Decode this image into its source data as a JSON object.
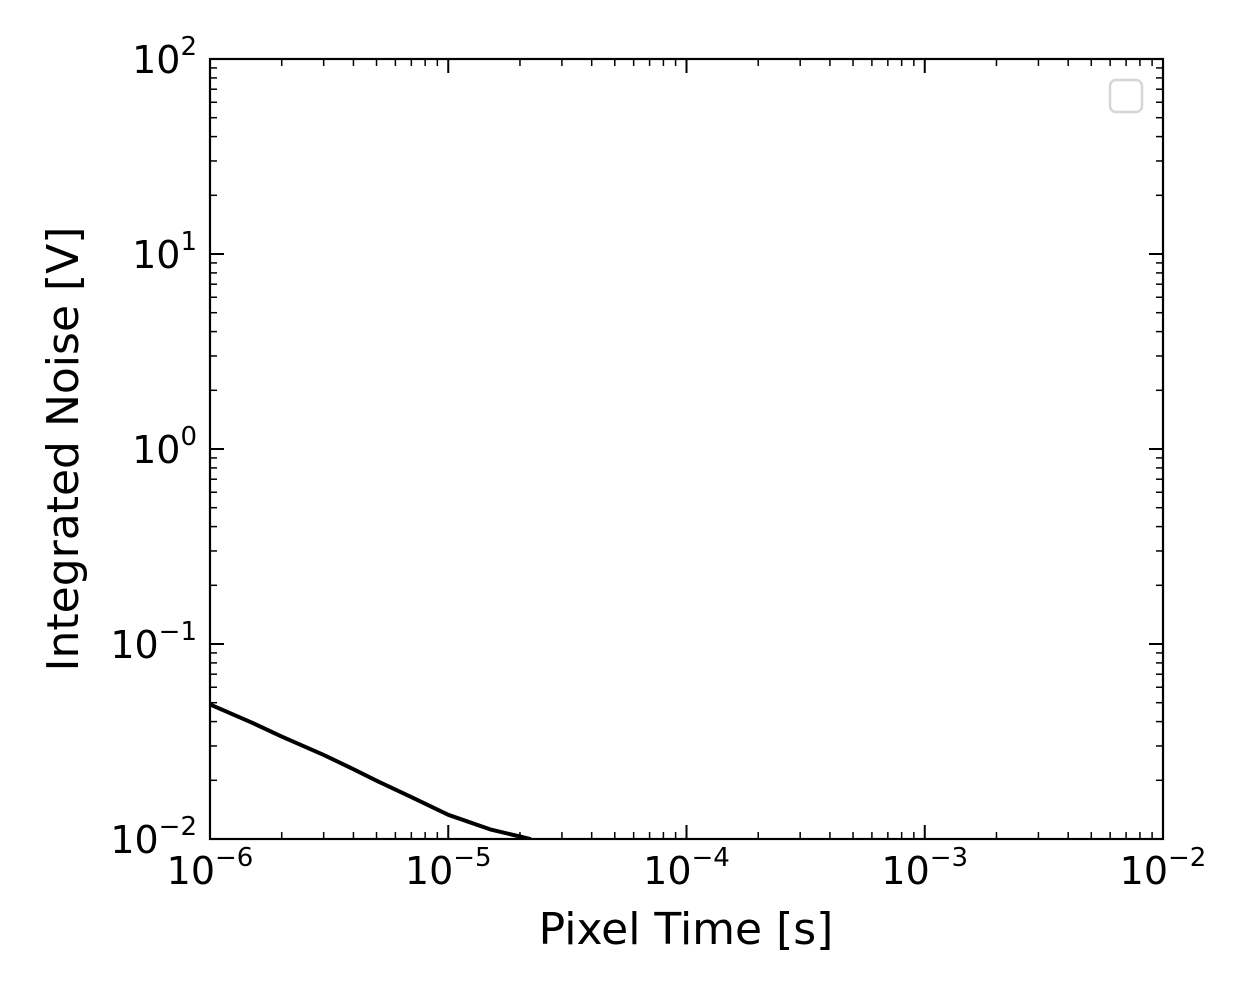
{
  "chart_data": {
    "type": "line",
    "title": "",
    "xlabel": "Pixel Time [s]",
    "ylabel": "Integrated Noise [V]",
    "xscale": "log",
    "yscale": "log",
    "xlim": [
      1e-06,
      0.01
    ],
    "ylim": [
      0.01,
      100.0
    ],
    "x_ticks": [
      {
        "base": "10",
        "exp": "−6"
      },
      {
        "base": "10",
        "exp": "−5"
      },
      {
        "base": "10",
        "exp": "−4"
      },
      {
        "base": "10",
        "exp": "−3"
      },
      {
        "base": "10",
        "exp": "−2"
      }
    ],
    "y_ticks": [
      {
        "base": "10",
        "exp": "−2"
      },
      {
        "base": "10",
        "exp": "−1"
      },
      {
        "base": "10",
        "exp": "0"
      },
      {
        "base": "10",
        "exp": "1"
      },
      {
        "base": "10",
        "exp": "2"
      }
    ],
    "grid": false,
    "legend": {
      "placement": "top-right",
      "entries": []
    },
    "series": [
      {
        "color": "#000000",
        "x": [
          1e-06,
          1.5e-06,
          2e-06,
          3e-06,
          4e-06,
          5e-06,
          7e-06,
          1e-05,
          1.5e-05,
          2e-05,
          2.2e-05
        ],
        "y": [
          0.049,
          0.0395,
          0.0335,
          0.027,
          0.0228,
          0.0199,
          0.0164,
          0.0133,
          0.0112,
          0.0103,
          0.01
        ]
      }
    ]
  }
}
